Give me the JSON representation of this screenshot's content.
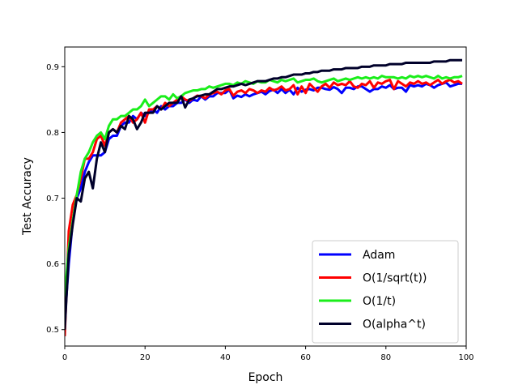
{
  "chart_data": {
    "type": "line",
    "title": "",
    "xlabel": "Epoch",
    "ylabel": "Test Accuracy",
    "xlim": [
      0,
      100
    ],
    "ylim": [
      0.475,
      0.93
    ],
    "xticks": [
      0,
      20,
      40,
      60,
      80,
      100
    ],
    "yticks": [
      0.5,
      0.6,
      0.7,
      0.8,
      0.9
    ],
    "grid": false,
    "legend_position": "lower-right",
    "x": [
      0,
      1,
      2,
      3,
      4,
      5,
      6,
      7,
      8,
      9,
      10,
      11,
      12,
      13,
      14,
      15,
      16,
      17,
      18,
      19,
      20,
      21,
      22,
      23,
      24,
      25,
      26,
      27,
      28,
      29,
      30,
      31,
      32,
      33,
      34,
      35,
      36,
      37,
      38,
      39,
      40,
      41,
      42,
      43,
      44,
      45,
      46,
      47,
      48,
      49,
      50,
      51,
      52,
      53,
      54,
      55,
      56,
      57,
      58,
      59,
      60,
      61,
      62,
      63,
      64,
      65,
      66,
      67,
      68,
      69,
      70,
      71,
      72,
      73,
      74,
      75,
      76,
      77,
      78,
      79,
      80,
      81,
      82,
      83,
      84,
      85,
      86,
      87,
      88,
      89,
      90,
      91,
      92,
      93,
      94,
      95,
      96,
      97,
      98,
      99
    ],
    "series": [
      {
        "name": "Adam",
        "color": "#0000ff",
        "values": [
          0.515,
          0.6,
          0.665,
          0.7,
          0.715,
          0.74,
          0.755,
          0.765,
          0.765,
          0.765,
          0.77,
          0.79,
          0.795,
          0.795,
          0.81,
          0.815,
          0.815,
          0.825,
          0.82,
          0.83,
          0.825,
          0.83,
          0.835,
          0.83,
          0.84,
          0.835,
          0.84,
          0.84,
          0.845,
          0.845,
          0.85,
          0.845,
          0.85,
          0.848,
          0.855,
          0.85,
          0.855,
          0.855,
          0.86,
          0.86,
          0.86,
          0.865,
          0.852,
          0.856,
          0.854,
          0.858,
          0.855,
          0.858,
          0.86,
          0.862,
          0.858,
          0.863,
          0.865,
          0.86,
          0.866,
          0.86,
          0.865,
          0.858,
          0.868,
          0.862,
          0.865,
          0.866,
          0.864,
          0.868,
          0.868,
          0.866,
          0.865,
          0.869,
          0.866,
          0.86,
          0.868,
          0.868,
          0.866,
          0.87,
          0.87,
          0.866,
          0.862,
          0.866,
          0.866,
          0.87,
          0.868,
          0.872,
          0.866,
          0.868,
          0.868,
          0.862,
          0.872,
          0.87,
          0.872,
          0.87,
          0.874,
          0.872,
          0.868,
          0.872,
          0.874,
          0.876,
          0.87,
          0.872,
          0.874,
          0.874
        ]
      },
      {
        "name": "O(1/sqrt(t))",
        "color": "#ff0000",
        "values": [
          0.49,
          0.65,
          0.69,
          0.705,
          0.73,
          0.76,
          0.76,
          0.77,
          0.79,
          0.795,
          0.78,
          0.8,
          0.805,
          0.8,
          0.815,
          0.82,
          0.825,
          0.815,
          0.82,
          0.83,
          0.815,
          0.835,
          0.835,
          0.84,
          0.835,
          0.845,
          0.84,
          0.845,
          0.85,
          0.855,
          0.85,
          0.848,
          0.852,
          0.856,
          0.855,
          0.852,
          0.858,
          0.86,
          0.862,
          0.858,
          0.864,
          0.866,
          0.856,
          0.862,
          0.864,
          0.86,
          0.866,
          0.864,
          0.86,
          0.864,
          0.862,
          0.868,
          0.864,
          0.866,
          0.87,
          0.864,
          0.866,
          0.872,
          0.858,
          0.87,
          0.86,
          0.874,
          0.868,
          0.862,
          0.87,
          0.874,
          0.868,
          0.876,
          0.872,
          0.874,
          0.872,
          0.878,
          0.87,
          0.868,
          0.874,
          0.872,
          0.878,
          0.868,
          0.876,
          0.874,
          0.878,
          0.88,
          0.866,
          0.878,
          0.874,
          0.87,
          0.876,
          0.874,
          0.878,
          0.874,
          0.876,
          0.872,
          0.876,
          0.88,
          0.874,
          0.878,
          0.88,
          0.876,
          0.878,
          0.874
        ]
      },
      {
        "name": "O(1/t)",
        "color": "#1aee1a",
        "values": [
          0.55,
          0.625,
          0.665,
          0.705,
          0.74,
          0.76,
          0.77,
          0.785,
          0.795,
          0.8,
          0.79,
          0.81,
          0.82,
          0.82,
          0.825,
          0.825,
          0.83,
          0.835,
          0.835,
          0.84,
          0.85,
          0.84,
          0.845,
          0.85,
          0.855,
          0.855,
          0.85,
          0.858,
          0.852,
          0.855,
          0.86,
          0.862,
          0.864,
          0.864,
          0.866,
          0.866,
          0.87,
          0.868,
          0.87,
          0.872,
          0.874,
          0.874,
          0.872,
          0.876,
          0.874,
          0.878,
          0.876,
          0.874,
          0.878,
          0.876,
          0.876,
          0.88,
          0.878,
          0.876,
          0.88,
          0.878,
          0.88,
          0.882,
          0.876,
          0.878,
          0.88,
          0.88,
          0.882,
          0.878,
          0.876,
          0.878,
          0.88,
          0.882,
          0.878,
          0.88,
          0.882,
          0.88,
          0.882,
          0.884,
          0.882,
          0.884,
          0.882,
          0.884,
          0.882,
          0.886,
          0.884,
          0.884,
          0.884,
          0.882,
          0.884,
          0.882,
          0.886,
          0.884,
          0.886,
          0.884,
          0.886,
          0.884,
          0.882,
          0.886,
          0.882,
          0.884,
          0.882,
          0.884,
          0.884,
          0.886
        ]
      },
      {
        "name": "O(alpha^t)",
        "color": "#00002a",
        "values": [
          0.5,
          0.615,
          0.66,
          0.7,
          0.695,
          0.73,
          0.74,
          0.715,
          0.76,
          0.785,
          0.77,
          0.8,
          0.805,
          0.8,
          0.81,
          0.805,
          0.825,
          0.82,
          0.805,
          0.815,
          0.83,
          0.83,
          0.83,
          0.84,
          0.835,
          0.84,
          0.845,
          0.845,
          0.845,
          0.855,
          0.838,
          0.85,
          0.852,
          0.855,
          0.856,
          0.858,
          0.858,
          0.862,
          0.866,
          0.866,
          0.868,
          0.87,
          0.87,
          0.872,
          0.874,
          0.872,
          0.874,
          0.876,
          0.878,
          0.878,
          0.878,
          0.88,
          0.882,
          0.882,
          0.884,
          0.884,
          0.886,
          0.888,
          0.888,
          0.888,
          0.89,
          0.89,
          0.892,
          0.892,
          0.894,
          0.894,
          0.894,
          0.896,
          0.896,
          0.896,
          0.898,
          0.898,
          0.898,
          0.898,
          0.9,
          0.9,
          0.9,
          0.902,
          0.902,
          0.902,
          0.902,
          0.904,
          0.904,
          0.904,
          0.904,
          0.906,
          0.906,
          0.906,
          0.906,
          0.906,
          0.906,
          0.906,
          0.908,
          0.908,
          0.908,
          0.908,
          0.91,
          0.91,
          0.91,
          0.91
        ]
      }
    ]
  }
}
